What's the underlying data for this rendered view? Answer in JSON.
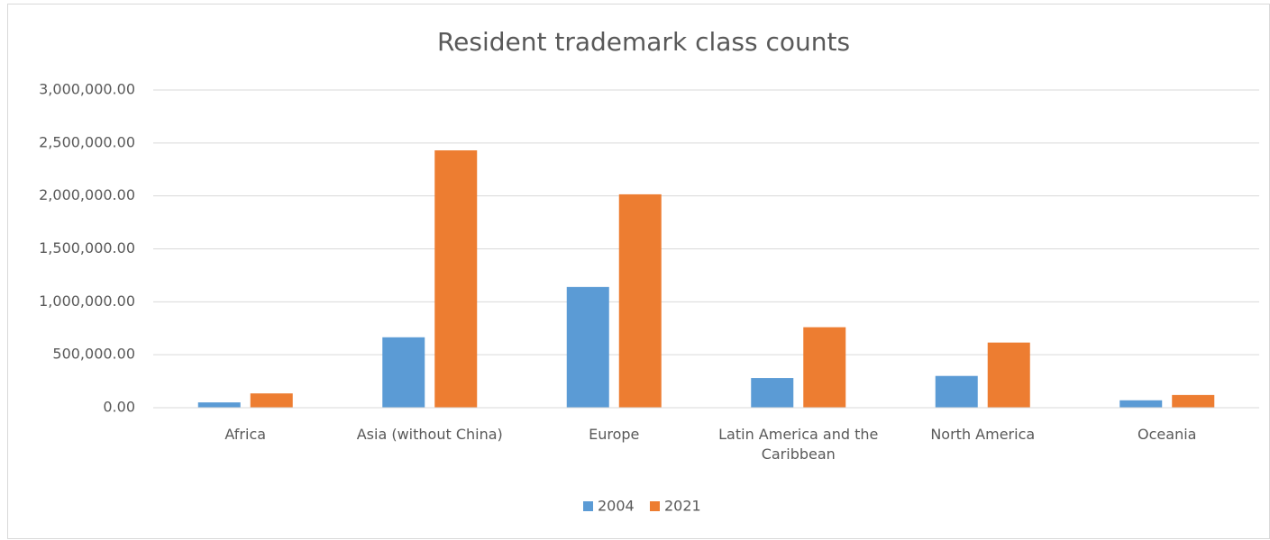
{
  "chart_data": {
    "type": "bar",
    "title": "Resident trademark class counts",
    "categories": [
      "Africa",
      "Asia (without China)",
      "Europe",
      "Latin America and the Caribbean",
      "North America",
      "Oceania"
    ],
    "series": [
      {
        "name": "2004",
        "color": "#5b9bd5",
        "values": [
          50000,
          665000,
          1140000,
          280000,
          300000,
          70000
        ]
      },
      {
        "name": "2021",
        "color": "#ed7d31",
        "values": [
          135000,
          2430000,
          2015000,
          760000,
          615000,
          120000
        ]
      }
    ],
    "ylim": [
      0,
      3000000
    ],
    "yticks": [
      {
        "value": 0,
        "label": "0.00"
      },
      {
        "value": 500000,
        "label": "500,000.00"
      },
      {
        "value": 1000000,
        "label": "1,000,000.00"
      },
      {
        "value": 1500000,
        "label": "1,500,000.00"
      },
      {
        "value": 2000000,
        "label": "2,000,000.00"
      },
      {
        "value": 2500000,
        "label": "2,500,000.00"
      },
      {
        "value": 3000000,
        "label": "3,000,000.00"
      }
    ],
    "grid": true,
    "legend": "bottom"
  }
}
